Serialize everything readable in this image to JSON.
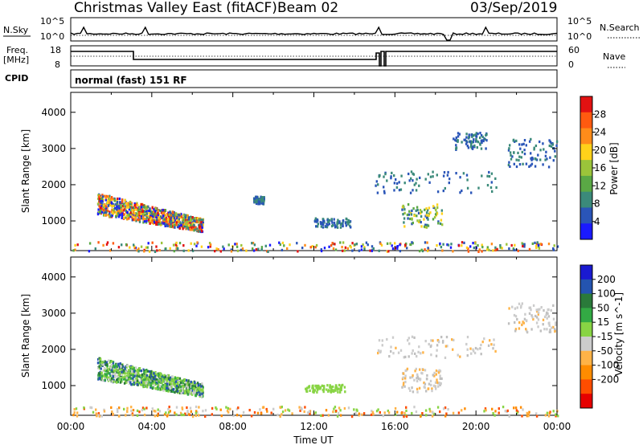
{
  "header": {
    "station": "Christmas Valley East (fitACF)",
    "beam": "Beam 02",
    "date": "03/Sep/2019"
  },
  "noise_panel": {
    "left_label": "N.Sky",
    "right_label": "N.Search",
    "y_ticks": [
      "10^5",
      "10^0"
    ]
  },
  "freq_panel": {
    "left_label_1": "Freq.",
    "left_label_2": "[MHz]",
    "left_ticks": [
      "18",
      "8"
    ],
    "right_label": "Nave",
    "right_ticks": [
      "60",
      "0"
    ]
  },
  "cpid": {
    "label": "CPID",
    "value": "normal (fast) 151 RF"
  },
  "colors": {
    "power": [
      "#1a1aff",
      "#2a55b8",
      "#3b8a7a",
      "#5aa845",
      "#9bc43a",
      "#ffd21a",
      "#ff8c1a",
      "#ff5a10",
      "#e21212"
    ],
    "velocity": [
      "#e60000",
      "#ff4d00",
      "#ff8c00",
      "#ffb347",
      "#cccccc",
      "#bfbfbf",
      "#88d444",
      "#33aa44",
      "#2a7a3a",
      "#2454b0",
      "#1a1ad1"
    ]
  },
  "chart_data": [
    {
      "type": "heatmap",
      "name": "power-panel",
      "ylabel": "Slant Range [km]",
      "xlim": [
        "00:00",
        "24:00"
      ],
      "ylim": [
        180,
        4550
      ],
      "y_ticks": [
        1000,
        2000,
        3000,
        4000
      ],
      "colorbar": {
        "label": "Power [dB]",
        "ticks": [
          4,
          8,
          12,
          16,
          20,
          24,
          28
        ],
        "range": [
          0,
          32
        ]
      },
      "regions": [
        {
          "t0": 1.3,
          "t1": 6.5,
          "r0": 750,
          "r1": 1650,
          "level": "mixed-high"
        },
        {
          "t0": 9.0,
          "t1": 9.5,
          "r0": 1500,
          "r1": 1700,
          "level": "low"
        },
        {
          "t0": 12.0,
          "t1": 13.8,
          "r0": 850,
          "r1": 1100,
          "level": "low"
        },
        {
          "t0": 16.3,
          "t1": 18.3,
          "r0": 850,
          "r1": 1500,
          "level": "mixed"
        },
        {
          "t0": 15.0,
          "t1": 21.0,
          "r0": 1800,
          "r1": 2400,
          "level": "low"
        },
        {
          "t0": 18.8,
          "t1": 20.5,
          "r0": 3000,
          "r1": 3500,
          "level": "low"
        },
        {
          "t0": 21.5,
          "t1": 24.0,
          "r0": 2500,
          "r1": 3300,
          "level": "low"
        },
        {
          "t0": 0.0,
          "t1": 24.0,
          "r0": 180,
          "r1": 450,
          "level": "ground"
        }
      ]
    },
    {
      "type": "heatmap",
      "name": "velocity-panel",
      "xlabel": "Time UT",
      "ylabel": "Slant Range [km]",
      "xlim": [
        "00:00",
        "24:00"
      ],
      "ylim": [
        180,
        4550
      ],
      "x_ticks": [
        "00:00",
        "04:00",
        "08:00",
        "12:00",
        "16:00",
        "20:00",
        "00:00"
      ],
      "y_ticks": [
        1000,
        2000,
        3000,
        4000
      ],
      "colorbar": {
        "label": "Velocity [m s^-1]",
        "ticks": [
          200,
          100,
          50,
          15,
          -15,
          -50,
          -100,
          -200
        ]
      },
      "regions": [
        {
          "t0": 1.3,
          "t1": 6.5,
          "r0": 750,
          "r1": 1650,
          "level": "positive"
        },
        {
          "t0": 11.5,
          "t1": 13.5,
          "r0": 850,
          "r1": 1050,
          "level": "slight-positive"
        },
        {
          "t0": 16.3,
          "t1": 18.3,
          "r0": 850,
          "r1": 1500,
          "level": "near-zero"
        },
        {
          "t0": 15.0,
          "t1": 21.0,
          "r0": 1800,
          "r1": 2400,
          "level": "near-zero"
        },
        {
          "t0": 21.5,
          "t1": 24.0,
          "r0": 2500,
          "r1": 3300,
          "level": "near-zero"
        },
        {
          "t0": 0.0,
          "t1": 24.0,
          "r0": 180,
          "r1": 450,
          "level": "negative"
        }
      ]
    }
  ]
}
